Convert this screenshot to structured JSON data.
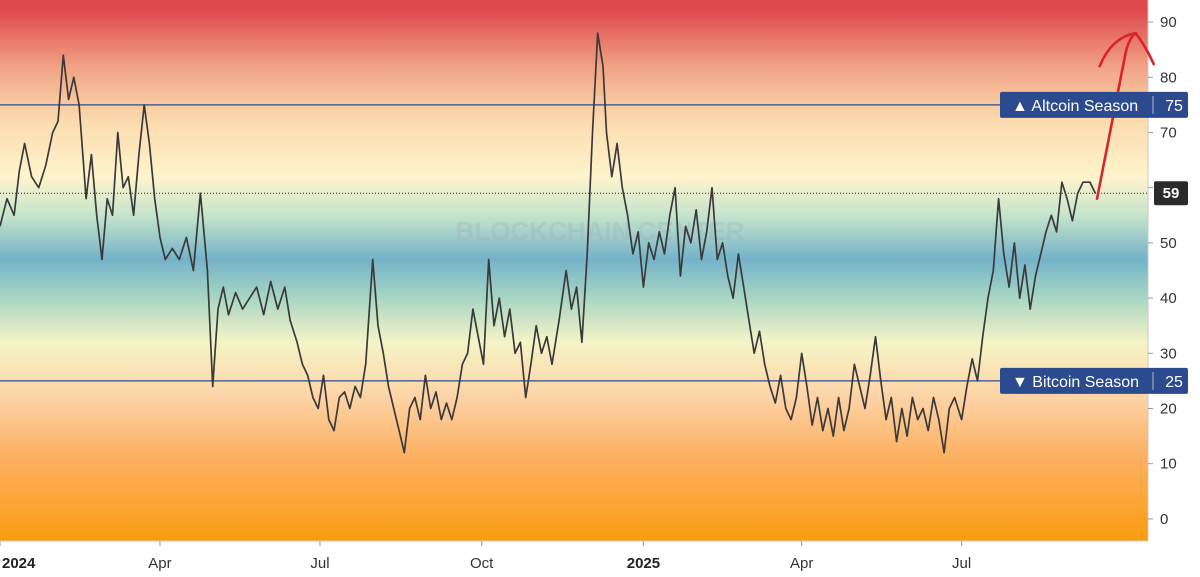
{
  "chart_data": {
    "type": "line",
    "title": "",
    "xlabel": "",
    "ylabel": "",
    "ylim": [
      -4,
      94
    ],
    "y_ticks": [
      0,
      10,
      20,
      30,
      40,
      50,
      60,
      70,
      80,
      90
    ],
    "x_ticks": [
      {
        "label": "2024",
        "bold": true
      },
      {
        "label": "Apr",
        "bold": false
      },
      {
        "label": "Jul",
        "bold": false
      },
      {
        "label": "Oct",
        "bold": false
      },
      {
        "label": "2025",
        "bold": true
      },
      {
        "label": "Apr",
        "bold": false
      },
      {
        "label": "Jul",
        "bold": false
      }
    ],
    "x_tick_dates": [
      "2024-01-01",
      "2024-04-01",
      "2024-07-01",
      "2024-10-01",
      "2025-01-01",
      "2025-04-01",
      "2025-07-01"
    ],
    "x_range": [
      "2024-01-01",
      "2025-10-15"
    ],
    "series": [
      {
        "color": "#3a3a3a",
        "points": [
          [
            "2024-01-01",
            53
          ],
          [
            "2024-01-05",
            58
          ],
          [
            "2024-01-09",
            55
          ],
          [
            "2024-01-12",
            63
          ],
          [
            "2024-01-15",
            68
          ],
          [
            "2024-01-19",
            62
          ],
          [
            "2024-01-23",
            60
          ],
          [
            "2024-01-27",
            64
          ],
          [
            "2024-01-31",
            70
          ],
          [
            "2024-02-03",
            72
          ],
          [
            "2024-02-06",
            84
          ],
          [
            "2024-02-09",
            76
          ],
          [
            "2024-02-12",
            80
          ],
          [
            "2024-02-15",
            75
          ],
          [
            "2024-02-19",
            58
          ],
          [
            "2024-02-22",
            66
          ],
          [
            "2024-02-25",
            55
          ],
          [
            "2024-02-28",
            47
          ],
          [
            "2024-03-02",
            58
          ],
          [
            "2024-03-05",
            55
          ],
          [
            "2024-03-08",
            70
          ],
          [
            "2024-03-11",
            60
          ],
          [
            "2024-03-14",
            62
          ],
          [
            "2024-03-17",
            55
          ],
          [
            "2024-03-20",
            66
          ],
          [
            "2024-03-23",
            75
          ],
          [
            "2024-03-26",
            68
          ],
          [
            "2024-03-29",
            58
          ],
          [
            "2024-04-01",
            51
          ],
          [
            "2024-04-04",
            47
          ],
          [
            "2024-04-08",
            49
          ],
          [
            "2024-04-12",
            47
          ],
          [
            "2024-04-16",
            51
          ],
          [
            "2024-04-20",
            45
          ],
          [
            "2024-04-24",
            59
          ],
          [
            "2024-04-28",
            45
          ],
          [
            "2024-05-01",
            24
          ],
          [
            "2024-05-04",
            38
          ],
          [
            "2024-05-07",
            42
          ],
          [
            "2024-05-10",
            37
          ],
          [
            "2024-05-14",
            41
          ],
          [
            "2024-05-18",
            38
          ],
          [
            "2024-05-22",
            40
          ],
          [
            "2024-05-26",
            42
          ],
          [
            "2024-05-30",
            37
          ],
          [
            "2024-06-03",
            43
          ],
          [
            "2024-06-07",
            38
          ],
          [
            "2024-06-11",
            42
          ],
          [
            "2024-06-14",
            36
          ],
          [
            "2024-06-18",
            32
          ],
          [
            "2024-06-21",
            28
          ],
          [
            "2024-06-24",
            26
          ],
          [
            "2024-06-27",
            22
          ],
          [
            "2024-06-30",
            20
          ],
          [
            "2024-07-03",
            26
          ],
          [
            "2024-07-06",
            18
          ],
          [
            "2024-07-09",
            16
          ],
          [
            "2024-07-12",
            22
          ],
          [
            "2024-07-15",
            23
          ],
          [
            "2024-07-18",
            20
          ],
          [
            "2024-07-21",
            24
          ],
          [
            "2024-07-24",
            22
          ],
          [
            "2024-07-27",
            28
          ],
          [
            "2024-07-31",
            47
          ],
          [
            "2024-08-03",
            35
          ],
          [
            "2024-08-06",
            30
          ],
          [
            "2024-08-09",
            24
          ],
          [
            "2024-08-12",
            20
          ],
          [
            "2024-08-15",
            16
          ],
          [
            "2024-08-18",
            12
          ],
          [
            "2024-08-21",
            20
          ],
          [
            "2024-08-24",
            22
          ],
          [
            "2024-08-27",
            18
          ],
          [
            "2024-08-30",
            26
          ],
          [
            "2024-09-02",
            20
          ],
          [
            "2024-09-05",
            23
          ],
          [
            "2024-09-08",
            18
          ],
          [
            "2024-09-11",
            21
          ],
          [
            "2024-09-14",
            18
          ],
          [
            "2024-09-17",
            22
          ],
          [
            "2024-09-20",
            28
          ],
          [
            "2024-09-23",
            30
          ],
          [
            "2024-09-26",
            38
          ],
          [
            "2024-09-29",
            33
          ],
          [
            "2024-10-02",
            28
          ],
          [
            "2024-10-05",
            47
          ],
          [
            "2024-10-08",
            35
          ],
          [
            "2024-10-11",
            40
          ],
          [
            "2024-10-14",
            33
          ],
          [
            "2024-10-17",
            38
          ],
          [
            "2024-10-20",
            30
          ],
          [
            "2024-10-23",
            32
          ],
          [
            "2024-10-26",
            22
          ],
          [
            "2024-10-29",
            28
          ],
          [
            "2024-11-01",
            35
          ],
          [
            "2024-11-04",
            30
          ],
          [
            "2024-11-07",
            33
          ],
          [
            "2024-11-10",
            28
          ],
          [
            "2024-11-14",
            36
          ],
          [
            "2024-11-18",
            45
          ],
          [
            "2024-11-21",
            38
          ],
          [
            "2024-11-24",
            42
          ],
          [
            "2024-11-27",
            32
          ],
          [
            "2024-11-30",
            48
          ],
          [
            "2024-12-03",
            70
          ],
          [
            "2024-12-06",
            88
          ],
          [
            "2024-12-09",
            82
          ],
          [
            "2024-12-11",
            70
          ],
          [
            "2024-12-14",
            62
          ],
          [
            "2024-12-17",
            68
          ],
          [
            "2024-12-20",
            60
          ],
          [
            "2024-12-23",
            55
          ],
          [
            "2024-12-26",
            48
          ],
          [
            "2024-12-29",
            52
          ],
          [
            "2025-01-01",
            42
          ],
          [
            "2025-01-04",
            50
          ],
          [
            "2025-01-07",
            47
          ],
          [
            "2025-01-10",
            52
          ],
          [
            "2025-01-13",
            48
          ],
          [
            "2025-01-16",
            55
          ],
          [
            "2025-01-19",
            60
          ],
          [
            "2025-01-22",
            44
          ],
          [
            "2025-01-25",
            53
          ],
          [
            "2025-01-28",
            50
          ],
          [
            "2025-01-31",
            56
          ],
          [
            "2025-02-03",
            47
          ],
          [
            "2025-02-06",
            52
          ],
          [
            "2025-02-09",
            60
          ],
          [
            "2025-02-12",
            47
          ],
          [
            "2025-02-15",
            50
          ],
          [
            "2025-02-18",
            44
          ],
          [
            "2025-02-21",
            40
          ],
          [
            "2025-02-24",
            48
          ],
          [
            "2025-02-27",
            42
          ],
          [
            "2025-03-02",
            36
          ],
          [
            "2025-03-05",
            30
          ],
          [
            "2025-03-08",
            34
          ],
          [
            "2025-03-11",
            28
          ],
          [
            "2025-03-14",
            24
          ],
          [
            "2025-03-17",
            21
          ],
          [
            "2025-03-20",
            26
          ],
          [
            "2025-03-23",
            20
          ],
          [
            "2025-03-26",
            18
          ],
          [
            "2025-03-29",
            22
          ],
          [
            "2025-04-01",
            30
          ],
          [
            "2025-04-04",
            24
          ],
          [
            "2025-04-07",
            17
          ],
          [
            "2025-04-10",
            22
          ],
          [
            "2025-04-13",
            16
          ],
          [
            "2025-04-16",
            20
          ],
          [
            "2025-04-19",
            15
          ],
          [
            "2025-04-22",
            22
          ],
          [
            "2025-04-25",
            16
          ],
          [
            "2025-04-28",
            20
          ],
          [
            "2025-05-01",
            28
          ],
          [
            "2025-05-04",
            24
          ],
          [
            "2025-05-07",
            20
          ],
          [
            "2025-05-10",
            26
          ],
          [
            "2025-05-13",
            33
          ],
          [
            "2025-05-16",
            25
          ],
          [
            "2025-05-19",
            18
          ],
          [
            "2025-05-22",
            22
          ],
          [
            "2025-05-25",
            14
          ],
          [
            "2025-05-28",
            20
          ],
          [
            "2025-05-31",
            15
          ],
          [
            "2025-06-03",
            22
          ],
          [
            "2025-06-06",
            18
          ],
          [
            "2025-06-09",
            20
          ],
          [
            "2025-06-12",
            16
          ],
          [
            "2025-06-15",
            22
          ],
          [
            "2025-06-18",
            18
          ],
          [
            "2025-06-21",
            12
          ],
          [
            "2025-06-24",
            20
          ],
          [
            "2025-06-27",
            22
          ],
          [
            "2025-07-01",
            18
          ],
          [
            "2025-07-04",
            24
          ],
          [
            "2025-07-07",
            29
          ],
          [
            "2025-07-10",
            25
          ],
          [
            "2025-07-13",
            33
          ],
          [
            "2025-07-16",
            40
          ],
          [
            "2025-07-19",
            45
          ],
          [
            "2025-07-22",
            58
          ],
          [
            "2025-07-25",
            48
          ],
          [
            "2025-07-28",
            42
          ],
          [
            "2025-07-31",
            50
          ],
          [
            "2025-08-03",
            40
          ],
          [
            "2025-08-06",
            46
          ],
          [
            "2025-08-09",
            38
          ],
          [
            "2025-08-12",
            44
          ],
          [
            "2025-08-15",
            48
          ],
          [
            "2025-08-18",
            52
          ],
          [
            "2025-08-21",
            55
          ],
          [
            "2025-08-24",
            52
          ],
          [
            "2025-08-27",
            61
          ],
          [
            "2025-08-30",
            58
          ],
          [
            "2025-09-02",
            54
          ],
          [
            "2025-09-05",
            59
          ],
          [
            "2025-09-08",
            61
          ],
          [
            "2025-09-12",
            61
          ],
          [
            "2025-09-15",
            59
          ]
        ]
      }
    ],
    "reference_lines": [
      {
        "value": 75,
        "label": "▲ Altcoin Season",
        "value_label": "75",
        "color": "#2c4b8e"
      },
      {
        "value": 25,
        "label": "▼ Bitcoin Season",
        "value_label": "25",
        "color": "#2c4b8e"
      }
    ],
    "current_value": {
      "value": 59,
      "label": "59"
    },
    "watermark": "BLOCKCHAIN CENTER",
    "annotation": {
      "type": "arrow",
      "color": "#d8242a",
      "from": [
        "2025-09-16",
        58
      ],
      "via": [
        "2025-10-02",
        84
      ],
      "to": [
        "2025-10-08",
        88
      ]
    },
    "background_gradient": [
      {
        "value": 92,
        "color": "#de4a4e"
      },
      {
        "value": 82,
        "color": "#f0a284"
      },
      {
        "value": 72,
        "color": "#fbdcae"
      },
      {
        "value": 62,
        "color": "#fff4cc"
      },
      {
        "value": 55,
        "color": "#c5e4cb"
      },
      {
        "value": 47,
        "color": "#74b2c8"
      },
      {
        "value": 40,
        "color": "#a8d6c4"
      },
      {
        "value": 32,
        "color": "#f5f4c6"
      },
      {
        "value": 22,
        "color": "#fdd3a6"
      },
      {
        "value": 12,
        "color": "#fcb265"
      },
      {
        "value": -4,
        "color": "#fa9c10"
      }
    ],
    "grid": false
  }
}
